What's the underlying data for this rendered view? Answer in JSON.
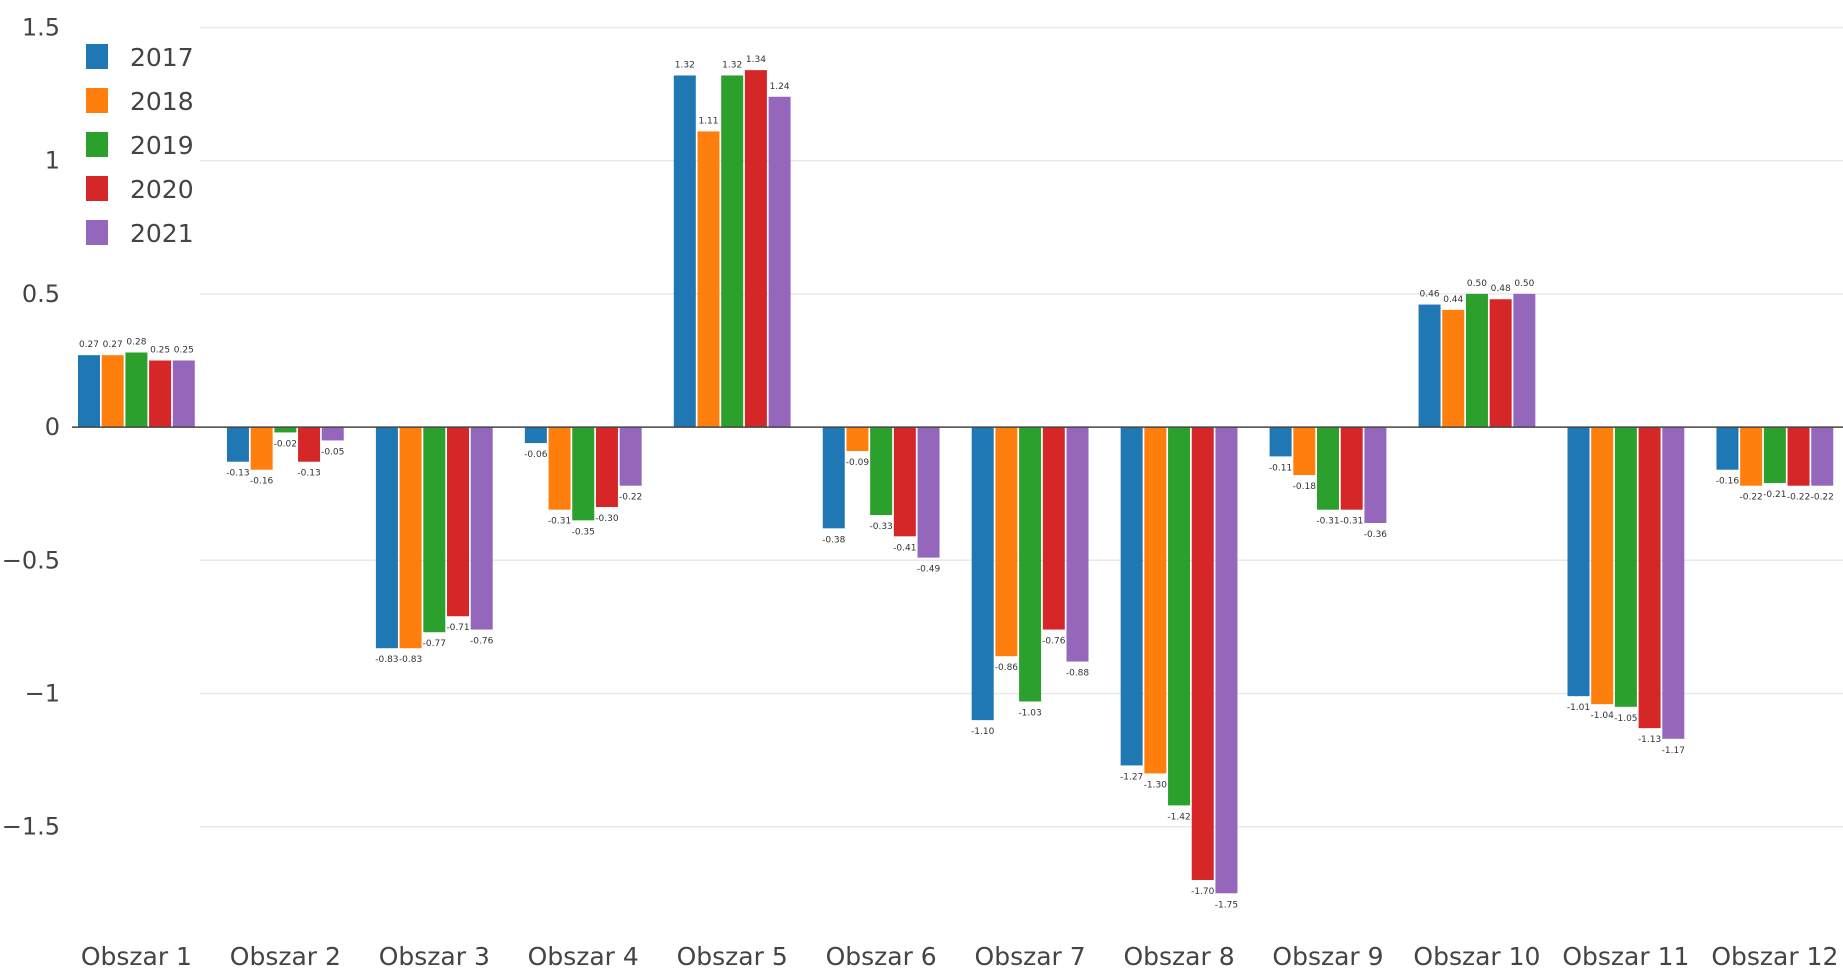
{
  "chart_data": {
    "type": "bar",
    "title": "",
    "xlabel": "",
    "ylabel": "",
    "categories": [
      "Obszar 1",
      "Obszar 2",
      "Obszar 3",
      "Obszar 4",
      "Obszar 5",
      "Obszar 6",
      "Obszar 7",
      "Obszar 8",
      "Obszar 9",
      "Obszar 10",
      "Obszar 11",
      "Obszar 12"
    ],
    "ylim": [
      -1.92,
      1.6
    ],
    "yticks": [
      1.5,
      1,
      0.5,
      0,
      -0.5,
      -1,
      -1.5
    ],
    "ytick_labels": [
      "1.5",
      "1",
      "0.5",
      "0",
      "−0.5",
      "−1",
      "−1.5"
    ],
    "grid": true,
    "legend_position": "top-left",
    "series": [
      {
        "name": "2017",
        "color": "#1f77b4",
        "values": [
          0.27,
          -0.13,
          -0.83,
          -0.06,
          1.32,
          -0.38,
          -1.1,
          -1.27,
          -0.11,
          0.46,
          -1.01,
          -0.16
        ]
      },
      {
        "name": "2018",
        "color": "#ff7f0e",
        "values": [
          0.27,
          -0.16,
          -0.83,
          -0.31,
          1.11,
          -0.09,
          -0.86,
          -1.3,
          -0.18,
          0.44,
          -1.04,
          -0.22
        ]
      },
      {
        "name": "2019",
        "color": "#2ca02c",
        "values": [
          0.28,
          -0.02,
          -0.77,
          -0.35,
          1.32,
          -0.33,
          -1.03,
          -1.42,
          -0.31,
          0.5,
          -1.05,
          -0.21
        ]
      },
      {
        "name": "2020",
        "color": "#d62728",
        "values": [
          0.25,
          -0.13,
          -0.71,
          -0.3,
          1.34,
          -0.41,
          -0.76,
          -1.7,
          -0.31,
          0.48,
          -1.13,
          -0.22
        ]
      },
      {
        "name": "2021",
        "color": "#9467bd",
        "values": [
          0.25,
          -0.05,
          -0.76,
          -0.22,
          1.24,
          -0.49,
          -0.88,
          -1.75,
          -0.36,
          0.5,
          -1.17,
          -0.22
        ]
      }
    ]
  }
}
